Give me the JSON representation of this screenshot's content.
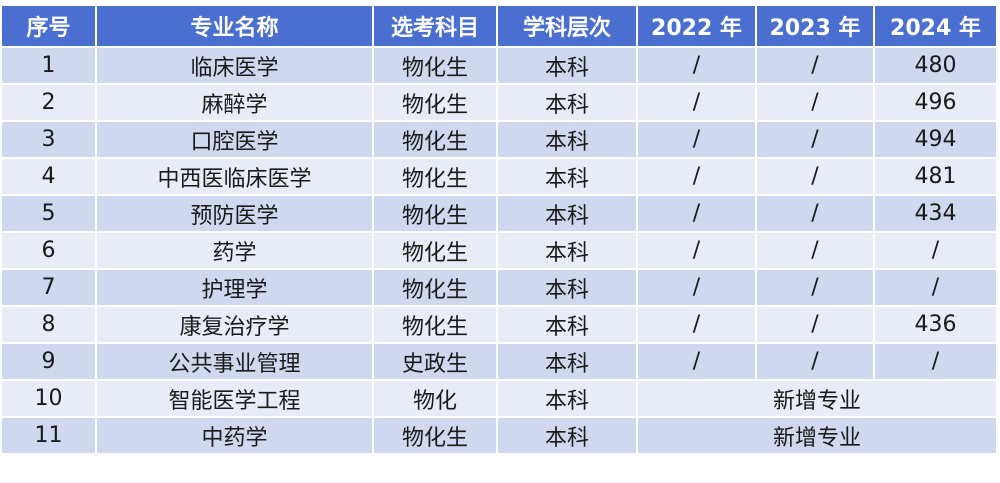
{
  "table": {
    "header": [
      "序号",
      "专业名称",
      "选考科目",
      "学科层次",
      "2022 年",
      "2023 年",
      "2024 年"
    ],
    "rows": [
      [
        1,
        "临床医学",
        "物化生",
        "本科",
        "/",
        "/",
        480
      ],
      [
        2,
        "麻醉学",
        "物化生",
        "本科",
        "/",
        "/",
        496
      ],
      [
        3,
        "口腔医学",
        "物化生",
        "本科",
        "/",
        "/",
        494
      ],
      [
        4,
        "中西医临床医学",
        "物化生",
        "本科",
        "/",
        "/",
        481
      ],
      [
        5,
        "预防医学",
        "物化生",
        "本科",
        "/",
        "/",
        434
      ],
      [
        6,
        "药学",
        "物化生",
        "本科",
        "/",
        "/",
        "/"
      ],
      [
        7,
        "护理学",
        "物化生",
        "本科",
        "/",
        "/",
        "/"
      ],
      [
        8,
        "康复治疗学",
        "物化生",
        "本科",
        "/",
        "/",
        436
      ],
      [
        9,
        "公共事业管理",
        "史政生",
        "本科",
        "/",
        "/",
        "/"
      ],
      [
        10,
        "智能医学工程",
        "物化",
        "本科",
        "新增专业"
      ],
      [
        11,
        "中药学",
        "物化生",
        "本科",
        "新增专业"
      ]
    ]
  }
}
